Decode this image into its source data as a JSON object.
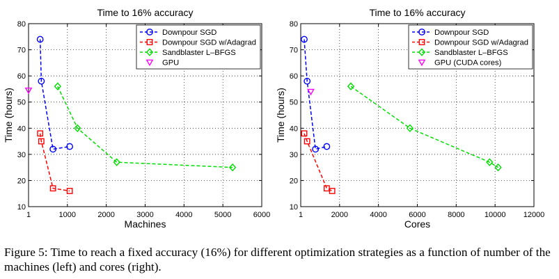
{
  "chart_data": [
    {
      "type": "line",
      "title": "Time to 16% accuracy",
      "xlabel": "Machines",
      "ylabel": "Time (hours)",
      "xlim": [
        1,
        6000
      ],
      "ylim": [
        10,
        80
      ],
      "x_ticks": [
        1,
        1000,
        2000,
        3000,
        4000,
        5000,
        6000
      ],
      "y_ticks": [
        10,
        20,
        30,
        40,
        50,
        60,
        70,
        80
      ],
      "x_tick_labels": [
        "1",
        "1000",
        "2000",
        "3000",
        "4000",
        "5000",
        "6000"
      ],
      "y_tick_labels": [
        "10",
        "20",
        "30",
        "40",
        "50",
        "60",
        "70",
        "80"
      ],
      "grid": true,
      "legend_position": "top-right",
      "series": [
        {
          "name": "Downpour SGD",
          "color": "#0000ff",
          "marker": "circle",
          "line": "dashed",
          "points": [
            [
              300,
              74
            ],
            [
              330,
              58
            ],
            [
              630,
              32
            ],
            [
              1060,
              33
            ]
          ]
        },
        {
          "name": "Downpour SGD w/Adagrad",
          "color": "#ff0000",
          "marker": "square",
          "line": "dashed",
          "points": [
            [
              300,
              38
            ],
            [
              330,
              35
            ],
            [
              630,
              17
            ],
            [
              1060,
              16
            ]
          ]
        },
        {
          "name": "Sandblaster L–BFGS",
          "color": "#00dd00",
          "marker": "diamond",
          "line": "dashed",
          "points": [
            [
              750,
              56
            ],
            [
              1260,
              40
            ],
            [
              2270,
              27
            ],
            [
              5250,
              25
            ]
          ]
        },
        {
          "name": "GPU",
          "color": "#ff00ff",
          "marker": "triangle-down",
          "line": "none",
          "points": [
            [
              1,
              54.5
            ]
          ]
        }
      ]
    },
    {
      "type": "line",
      "title": "Time to 16% accuracy",
      "xlabel": "Cores",
      "ylabel": "Time (hours)",
      "xlim": [
        1,
        12000
      ],
      "ylim": [
        10,
        80
      ],
      "x_ticks": [
        1,
        2000,
        4000,
        6000,
        8000,
        10000,
        12000
      ],
      "y_ticks": [
        10,
        20,
        30,
        40,
        50,
        60,
        70,
        80
      ],
      "x_tick_labels": [
        "1",
        "2000",
        "4000",
        "6000",
        "8000",
        "10000",
        "12000"
      ],
      "y_tick_labels": [
        "10",
        "20",
        "30",
        "40",
        "50",
        "60",
        "70",
        "80"
      ],
      "grid": true,
      "legend_position": "top-right",
      "series": [
        {
          "name": "Downpour SGD",
          "color": "#0000ff",
          "marker": "circle",
          "line": "dashed",
          "points": [
            [
              180,
              74
            ],
            [
              330,
              58
            ],
            [
              760,
              32
            ],
            [
              1340,
              33
            ]
          ]
        },
        {
          "name": "Downpour SGD w/Adagrad",
          "color": "#ff0000",
          "marker": "square",
          "line": "dashed",
          "points": [
            [
              180,
              38
            ],
            [
              330,
              35
            ],
            [
              1340,
              17
            ],
            [
              1620,
              16
            ]
          ]
        },
        {
          "name": "Sandblaster L–BFGS",
          "color": "#00dd00",
          "marker": "diamond",
          "line": "dashed",
          "points": [
            [
              2580,
              56
            ],
            [
              5620,
              40
            ],
            [
              9720,
              27
            ],
            [
              10160,
              25
            ]
          ]
        },
        {
          "name": "GPU (CUDA cores)",
          "color": "#ff00ff",
          "marker": "triangle-down",
          "line": "none",
          "points": [
            [
              520,
              54
            ]
          ]
        }
      ]
    }
  ],
  "caption": "Figure 5: Time to reach a fixed accuracy (16%) for different optimization strategies as a function of number of the machines (left) and cores (right)."
}
